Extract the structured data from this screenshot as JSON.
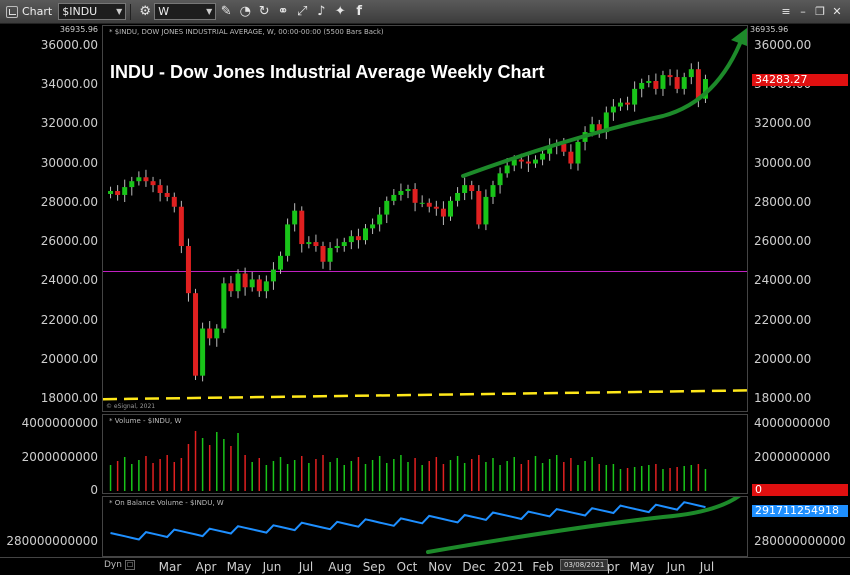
{
  "toolbar": {
    "app_label": "Chart",
    "symbol_value": "$INDU",
    "interval_value": "W",
    "icons": [
      "chart-icon",
      "settings-icon",
      "pencil-icon",
      "draw-tools-icon",
      "refresh-icon",
      "link-icon",
      "expand-icon",
      "bell-icon",
      "twitter-icon",
      "facebook-icon"
    ]
  },
  "window_controls": [
    "menu",
    "minimize",
    "restore",
    "close"
  ],
  "price_panel": {
    "caption": "* $INDU, DOW JONES INDUSTRIAL AVERAGE, W, 00:00-00:00 (5500 Bars Back)",
    "title": "INDU - Dow Jones Industrial Average Weekly Chart",
    "watermark": "© eSignal, 2021",
    "top_value_label": "36935.96",
    "last_price_label": "34283.27",
    "last_price_color": "#e01010",
    "ticks": [
      "36000.00",
      "34000.00",
      "32000.00",
      "30000.00",
      "28000.00",
      "26000.00",
      "24000.00",
      "22000.00",
      "20000.00",
      "18000.00"
    ]
  },
  "volume_panel": {
    "caption": "* Volume - $INDU, W",
    "ticks": [
      "4000000000",
      "2000000000",
      "0"
    ],
    "last_label": "0",
    "last_color": "#e01010"
  },
  "obv_panel": {
    "caption": "* On Balance Volume - $INDU, W",
    "ticks": [
      "280000000000"
    ],
    "last_label": "291711254918",
    "last_color": "#1e8fff"
  },
  "x_axis": {
    "months": [
      "Mar",
      "Apr",
      "May",
      "Jun",
      "Jul",
      "Aug",
      "Sep",
      "Oct",
      "Nov",
      "Dec",
      "2021",
      "Feb",
      "Apr",
      "May",
      "Jun",
      "Jul"
    ],
    "cursor_date": "03/08/2021",
    "dyn_label": "Dyn",
    "dyn_box": "☐"
  },
  "colors": {
    "up_candle": "#19c419",
    "down_candle": "#e02020",
    "support_line": "#c020c0",
    "trend_dashed": "#ffe81a",
    "trend_arrow": "#1d8a2a",
    "obv_line": "#1e8fff"
  },
  "chart_data": {
    "type": "candlestick",
    "title": "INDU - Dow Jones Industrial Average Weekly Chart",
    "ylim": [
      17300,
      37000
    ],
    "horizontal_line": 24500,
    "weekly_close": [
      28600,
      28400,
      28800,
      29100,
      29300,
      29100,
      28900,
      28500,
      28300,
      27800,
      25800,
      23400,
      19200,
      21600,
      21100,
      21600,
      23900,
      23500,
      24400,
      23700,
      24100,
      23500,
      24000,
      24600,
      25300,
      26900,
      27600,
      25900,
      26000,
      25800,
      25000,
      25700,
      25800,
      26000,
      26300,
      26100,
      26700,
      26900,
      27400,
      28100,
      28400,
      28600,
      28700,
      28000,
      28000,
      27800,
      27700,
      27300,
      28100,
      28500,
      28900,
      28600,
      26900,
      28300,
      28900,
      29500,
      29900,
      30200,
      30100,
      30000,
      30200,
      30500,
      30900,
      31000,
      30600,
      30000,
      31100,
      31600,
      32000,
      31600,
      32600,
      32900,
      33100,
      33000,
      33800,
      34100,
      34200,
      33800,
      34500,
      34400,
      33800,
      34400,
      34800,
      33300,
      34300
    ]
  }
}
